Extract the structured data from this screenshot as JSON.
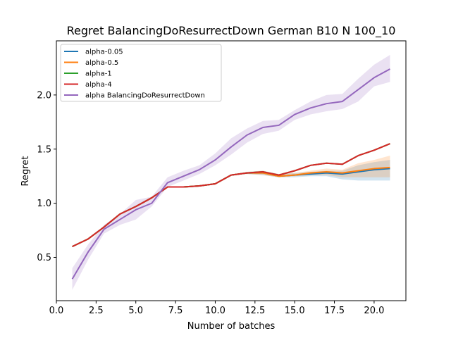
{
  "chart_data": {
    "type": "line",
    "title": "Regret BalancingDoResurrectDown German B10 N 100_10",
    "xlabel": "Number of batches",
    "ylabel": "Regret",
    "xlim": [
      0.0,
      22.0
    ],
    "ylim": [
      0.1,
      2.5
    ],
    "xticks": [
      "0.0",
      "2.5",
      "5.0",
      "7.5",
      "10.0",
      "12.5",
      "15.0",
      "17.5",
      "20.0"
    ],
    "yticks": [
      "0.5",
      "1.0",
      "1.5",
      "2.0"
    ],
    "grid": false,
    "legend_position": "top-left",
    "x": [
      1,
      2,
      3,
      4,
      5,
      6,
      7,
      8,
      9,
      10,
      11,
      12,
      13,
      14,
      15,
      16,
      17,
      18,
      19,
      20,
      21
    ],
    "series": [
      {
        "name": "alpha-0.05",
        "color": "#1f77b4",
        "values": [
          0.6,
          0.67,
          0.78,
          0.9,
          0.97,
          1.05,
          1.15,
          1.15,
          1.16,
          1.18,
          1.26,
          1.28,
          1.28,
          1.25,
          1.26,
          1.27,
          1.28,
          1.27,
          1.29,
          1.31,
          1.32
        ],
        "lower": [
          0.6,
          0.67,
          0.78,
          0.9,
          0.97,
          1.05,
          1.15,
          1.15,
          1.16,
          1.18,
          1.26,
          1.27,
          1.26,
          1.24,
          1.24,
          1.25,
          1.25,
          1.22,
          1.21,
          1.21,
          1.21
        ],
        "upper": [
          0.6,
          0.67,
          0.78,
          0.9,
          0.97,
          1.05,
          1.15,
          1.15,
          1.16,
          1.18,
          1.26,
          1.29,
          1.3,
          1.27,
          1.28,
          1.29,
          1.3,
          1.3,
          1.35,
          1.38,
          1.4
        ]
      },
      {
        "name": "alpha-0.5",
        "color": "#ff7f0e",
        "values": [
          0.6,
          0.67,
          0.78,
          0.9,
          0.97,
          1.05,
          1.15,
          1.15,
          1.16,
          1.18,
          1.26,
          1.28,
          1.28,
          1.25,
          1.26,
          1.28,
          1.29,
          1.28,
          1.3,
          1.32,
          1.33
        ],
        "lower": [
          0.6,
          0.67,
          0.78,
          0.9,
          0.97,
          1.05,
          1.15,
          1.15,
          1.16,
          1.18,
          1.26,
          1.27,
          1.26,
          1.24,
          1.25,
          1.26,
          1.26,
          1.24,
          1.24,
          1.24,
          1.24
        ],
        "upper": [
          0.6,
          0.67,
          0.78,
          0.9,
          0.97,
          1.05,
          1.15,
          1.15,
          1.16,
          1.18,
          1.26,
          1.29,
          1.3,
          1.27,
          1.28,
          1.3,
          1.32,
          1.31,
          1.37,
          1.4,
          1.44
        ]
      },
      {
        "name": "alpha-1",
        "color": "#2ca02c",
        "values": [
          0.6,
          0.67,
          0.78,
          0.9,
          0.97,
          1.05,
          1.15,
          1.15,
          1.16,
          1.18,
          1.26,
          1.28,
          1.29,
          1.26,
          1.3,
          1.35,
          1.37,
          1.36,
          1.44,
          1.49,
          1.55
        ],
        "lower": [
          0.6,
          0.67,
          0.78,
          0.9,
          0.97,
          1.05,
          1.15,
          1.15,
          1.16,
          1.18,
          1.26,
          1.28,
          1.29,
          1.26,
          1.3,
          1.35,
          1.37,
          1.36,
          1.44,
          1.49,
          1.55
        ],
        "upper": [
          0.6,
          0.67,
          0.78,
          0.9,
          0.97,
          1.05,
          1.15,
          1.15,
          1.16,
          1.18,
          1.26,
          1.28,
          1.29,
          1.26,
          1.3,
          1.35,
          1.37,
          1.36,
          1.44,
          1.49,
          1.55
        ]
      },
      {
        "name": "alpha-4",
        "color": "#d62728",
        "values": [
          0.6,
          0.67,
          0.78,
          0.9,
          0.97,
          1.05,
          1.15,
          1.15,
          1.16,
          1.18,
          1.26,
          1.28,
          1.29,
          1.26,
          1.3,
          1.35,
          1.37,
          1.36,
          1.44,
          1.49,
          1.55
        ],
        "lower": [
          0.6,
          0.67,
          0.78,
          0.9,
          0.97,
          1.05,
          1.15,
          1.15,
          1.16,
          1.18,
          1.26,
          1.28,
          1.29,
          1.26,
          1.3,
          1.35,
          1.37,
          1.36,
          1.44,
          1.49,
          1.55
        ],
        "upper": [
          0.6,
          0.67,
          0.78,
          0.9,
          0.97,
          1.05,
          1.15,
          1.15,
          1.16,
          1.18,
          1.26,
          1.28,
          1.29,
          1.26,
          1.3,
          1.35,
          1.37,
          1.36,
          1.44,
          1.49,
          1.55
        ]
      },
      {
        "name": "alpha BalancingDoResurrectDown",
        "color": "#9467bd",
        "values": [
          0.3,
          0.55,
          0.76,
          0.85,
          0.94,
          1.0,
          1.19,
          1.25,
          1.31,
          1.4,
          1.52,
          1.63,
          1.7,
          1.72,
          1.82,
          1.88,
          1.92,
          1.94,
          2.05,
          2.16,
          2.24
        ],
        "lower": [
          0.2,
          0.48,
          0.72,
          0.8,
          0.85,
          0.97,
          1.15,
          1.21,
          1.27,
          1.35,
          1.45,
          1.56,
          1.64,
          1.67,
          1.77,
          1.82,
          1.85,
          1.87,
          1.94,
          2.08,
          2.12
        ],
        "upper": [
          0.4,
          0.62,
          0.8,
          0.9,
          1.03,
          1.06,
          1.24,
          1.3,
          1.35,
          1.46,
          1.6,
          1.69,
          1.76,
          1.77,
          1.86,
          1.94,
          2.0,
          2.01,
          2.15,
          2.28,
          2.37
        ]
      }
    ]
  }
}
